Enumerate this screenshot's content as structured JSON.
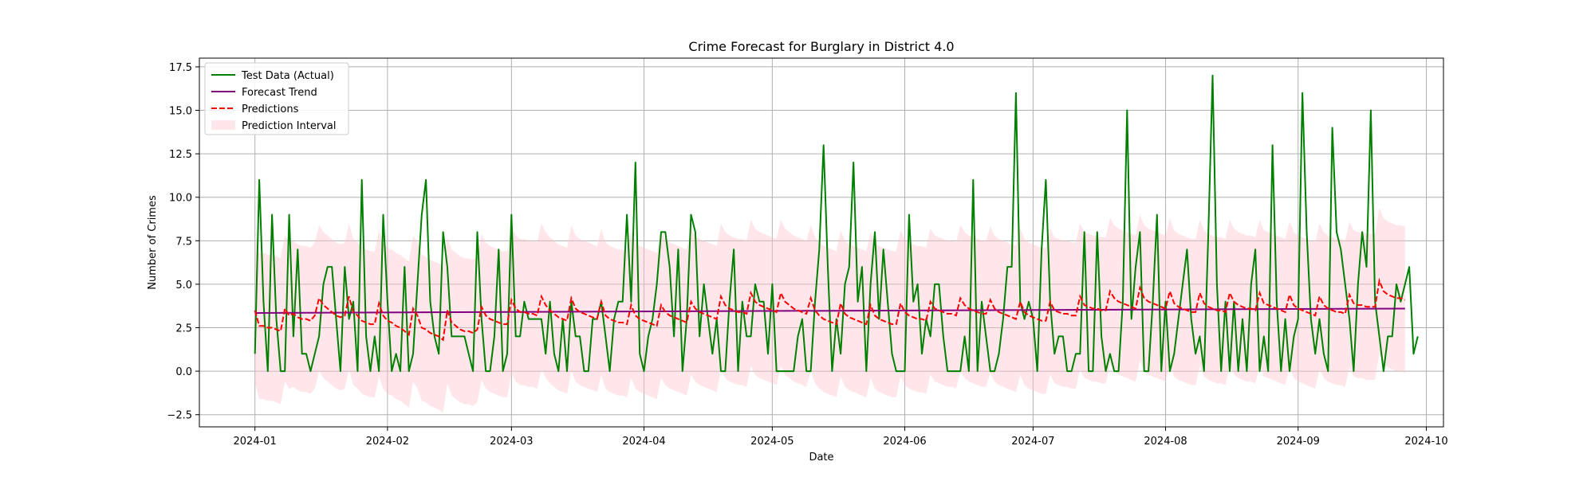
{
  "chart_data": {
    "type": "line",
    "title": "Crime Forecast for Burglary in District 4.0",
    "xlabel": "Date",
    "ylabel": "Number of Crimes",
    "x_start": "2024-01-01",
    "x_end": "2024-09-22",
    "xlim": [
      "2023-12-19",
      "2024-10-05"
    ],
    "ylim": [
      -3.2,
      18.0
    ],
    "x_ticks": [
      "2024-01-01",
      "2024-02-01",
      "2024-03-01",
      "2024-04-01",
      "2024-05-01",
      "2024-06-01",
      "2024-07-01",
      "2024-08-01",
      "2024-09-01",
      "2024-10-01"
    ],
    "x_tick_labels": [
      "2024-01",
      "2024-02",
      "2024-03",
      "2024-04",
      "2024-05",
      "2024-06",
      "2024-07",
      "2024-08",
      "2024-09",
      "2024-10"
    ],
    "y_ticks": [
      -2.5,
      0.0,
      2.5,
      5.0,
      7.5,
      10.0,
      12.5,
      15.0,
      17.5
    ],
    "y_tick_labels": [
      "−2.5",
      "0.0",
      "2.5",
      "5.0",
      "7.5",
      "10.0",
      "12.5",
      "15.0",
      "17.5"
    ],
    "grid": true,
    "legend_position": "top-left",
    "series": [
      {
        "name": "Test Data (Actual)",
        "color": "#008000",
        "style": "solid",
        "values": [
          1,
          11,
          4,
          0,
          9,
          3,
          0,
          0,
          9,
          2,
          7,
          1,
          1,
          0,
          1,
          2,
          5,
          6,
          6,
          3,
          0,
          6,
          3,
          4,
          0,
          11,
          2,
          0,
          2,
          0,
          9,
          4,
          0,
          1,
          0,
          6,
          0,
          1,
          5,
          9,
          11,
          4,
          2,
          1,
          8,
          6,
          2,
          2,
          2,
          2,
          1,
          0,
          8,
          3,
          0,
          0,
          2,
          7,
          0,
          1,
          9,
          2,
          2,
          4,
          3,
          3,
          3,
          3,
          1,
          4,
          1,
          0,
          3,
          0,
          4,
          2,
          2,
          0,
          0,
          3,
          3,
          4,
          2,
          0,
          3,
          4,
          4,
          9,
          4,
          12,
          1,
          0,
          2,
          3,
          5,
          8,
          8,
          6,
          2,
          7,
          0,
          3,
          9,
          8,
          2,
          5,
          3,
          1,
          3,
          0,
          0,
          4,
          7,
          0,
          4,
          2,
          2,
          5,
          4,
          4,
          1,
          5,
          0,
          0,
          0,
          0,
          0,
          2,
          3,
          0,
          0,
          4,
          7,
          13,
          6,
          0,
          3,
          1,
          5,
          6,
          12,
          4,
          6,
          0,
          5,
          8,
          3,
          7,
          4,
          1,
          0,
          0,
          0,
          9,
          4,
          5,
          1,
          3,
          2,
          5,
          5,
          2,
          0,
          0,
          0,
          0,
          2,
          0,
          11,
          0,
          4,
          2,
          0,
          0,
          1,
          3,
          6,
          6,
          16,
          4,
          3,
          4,
          3,
          0,
          7,
          11,
          4,
          1,
          2,
          2,
          0,
          0,
          1,
          1,
          8,
          0,
          0,
          8,
          2,
          0,
          1,
          0,
          0,
          4,
          15,
          3,
          6,
          8,
          0,
          0,
          4,
          9,
          0,
          4,
          0,
          1,
          3,
          5,
          7,
          3,
          1,
          2,
          0,
          8,
          17,
          5,
          0,
          4,
          0,
          4,
          0,
          3,
          0,
          5,
          7,
          0,
          2,
          0,
          13,
          4,
          0,
          3,
          0,
          2,
          3,
          16,
          8,
          3,
          1,
          3,
          1,
          0,
          14,
          8,
          7,
          5,
          3,
          0,
          5,
          8,
          6,
          15,
          4,
          2,
          0,
          2,
          2,
          5,
          4,
          5,
          6,
          1,
          2
        ]
      },
      {
        "name": "Forecast Trend",
        "color": "#800080",
        "style": "solid",
        "start_value": 3.35,
        "end_value": 3.6
      },
      {
        "name": "Predictions",
        "color": "#ff0000",
        "style": "dashed",
        "values": [
          3.5,
          2.6,
          2.6,
          2.5,
          2.5,
          2.4,
          2.3,
          3.6,
          3.2,
          3.3,
          3.1,
          3.0,
          3.0,
          2.9,
          3.2,
          4.2,
          3.8,
          3.6,
          3.4,
          3.2,
          3.1,
          3.2,
          4.3,
          3.4,
          3.2,
          2.9,
          2.8,
          2.7,
          2.7,
          3.9,
          3.2,
          2.9,
          2.8,
          2.6,
          2.5,
          2.3,
          2.1,
          3.6,
          3.2,
          2.5,
          2.4,
          2.2,
          2.1,
          2.0,
          1.8,
          3.5,
          2.8,
          2.6,
          2.4,
          2.3,
          2.3,
          2.2,
          2.4,
          3.7,
          3.2,
          3.0,
          2.9,
          2.8,
          2.7,
          2.7,
          4.1,
          3.6,
          3.4,
          3.4,
          3.3,
          3.3,
          3.2,
          4.3,
          3.8,
          3.5,
          3.3,
          3.1,
          3.0,
          2.9,
          4.2,
          3.6,
          3.4,
          3.3,
          3.2,
          3.1,
          3.0,
          4.0,
          3.2,
          3.0,
          2.9,
          2.8,
          2.8,
          2.7,
          3.8,
          3.2,
          3.0,
          2.9,
          2.8,
          2.7,
          2.6,
          3.8,
          3.4,
          3.2,
          3.1,
          3.0,
          2.9,
          2.8,
          4.0,
          3.6,
          3.4,
          3.3,
          3.2,
          3.1,
          3.0,
          4.3,
          3.8,
          3.6,
          3.5,
          3.4,
          3.4,
          3.3,
          4.5,
          4.0,
          3.8,
          3.7,
          3.6,
          3.5,
          3.4,
          4.5,
          4.0,
          3.8,
          3.6,
          3.5,
          3.4,
          3.3,
          4.2,
          3.5,
          3.2,
          3.0,
          2.9,
          2.8,
          2.7,
          3.9,
          3.3,
          3.1,
          3.0,
          2.9,
          2.8,
          2.7,
          3.8,
          3.2,
          3.0,
          2.9,
          2.8,
          2.7,
          2.7,
          3.9,
          3.4,
          3.2,
          3.1,
          3.0,
          3.0,
          2.9,
          4.0,
          3.6,
          3.5,
          3.4,
          3.3,
          3.3,
          3.2,
          4.2,
          3.8,
          3.6,
          3.5,
          3.4,
          3.3,
          3.3,
          4.1,
          3.6,
          3.4,
          3.3,
          3.2,
          3.1,
          3.0,
          4.0,
          3.4,
          3.2,
          3.1,
          3.0,
          2.9,
          2.9,
          4.0,
          3.5,
          3.4,
          3.3,
          3.3,
          3.2,
          3.2,
          4.3,
          3.8,
          3.7,
          3.6,
          3.6,
          3.5,
          3.5,
          4.6,
          4.2,
          4.0,
          3.9,
          3.8,
          3.7,
          3.6,
          4.8,
          4.2,
          4.0,
          3.9,
          3.8,
          3.7,
          3.6,
          4.6,
          3.9,
          3.7,
          3.6,
          3.5,
          3.4,
          3.4,
          4.5,
          3.9,
          3.7,
          3.6,
          3.5,
          3.5,
          3.4,
          4.5,
          4.0,
          3.8,
          3.7,
          3.6,
          3.6,
          3.5,
          4.5,
          3.9,
          3.8,
          3.7,
          3.6,
          3.5,
          3.4,
          4.4,
          3.8,
          3.6,
          3.5,
          3.4,
          3.3,
          3.2,
          4.3,
          3.8,
          3.6,
          3.5,
          3.4,
          3.4,
          3.3,
          4.4,
          3.9,
          3.8,
          3.8,
          3.7,
          3.7,
          3.7,
          5.2,
          4.6,
          4.4,
          4.3,
          4.2,
          4.2,
          4.1
        ]
      },
      {
        "name": "Prediction Interval",
        "color": "#ffc0cb",
        "style": "band",
        "half_width": 4.2
      }
    ]
  }
}
